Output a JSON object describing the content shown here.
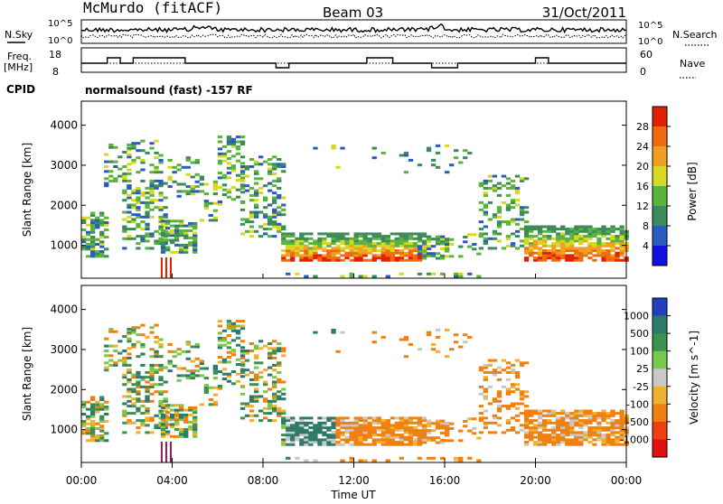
{
  "header": {
    "station": "McMurdo (fitACF)",
    "beam": "Beam 03",
    "date": "31/Oct/2011"
  },
  "noise_panel": {
    "left_label": "N.Sky",
    "right_label": "N.Search",
    "tick_top": "10^5",
    "tick_bottom": "10^0",
    "right_tick_top": "10^5",
    "right_tick_bottom": "10^0"
  },
  "freq_panel": {
    "left_label_1": "Freq.",
    "left_label_2": "[MHz]",
    "ticks": [
      "18",
      "8"
    ],
    "right_label": "Nave",
    "right_ticks": [
      "60",
      "0"
    ]
  },
  "cpid_panel": {
    "label": "CPID",
    "mode": "normalsound (fast) -157 RF"
  },
  "chart_data": [
    {
      "type": "heatmap",
      "name": "power",
      "ylabel": "Slant Range [km]",
      "yticks": [
        "1000",
        "2000",
        "3000",
        "4000"
      ],
      "colorbar_label": "Power [dB]",
      "colorbar_ticks": [
        "4",
        "8",
        "12",
        "16",
        "20",
        "24",
        "28"
      ],
      "colorbar_colors": [
        "#1010e0",
        "#2a5cc0",
        "#3c8c5a",
        "#5ab43c",
        "#d8d820",
        "#f0a020",
        "#f06a10",
        "#e02000"
      ]
    },
    {
      "type": "heatmap",
      "name": "velocity",
      "ylabel": "Slant Range [km]",
      "yticks": [
        "1000",
        "2000",
        "3000",
        "4000"
      ],
      "colorbar_label": "Velocity [m s^-1]",
      "colorbar_ticks": [
        "1000",
        "500",
        "100",
        "25",
        "-25",
        "-100",
        "-500",
        "-1000"
      ],
      "colorbar_colors": [
        "#2040c0",
        "#2e7a6a",
        "#3c9050",
        "#7ac848",
        "#c8c8c8",
        "#f0b030",
        "#f08010",
        "#f04010",
        "#e01010"
      ]
    }
  ],
  "time_axis": {
    "ticks": [
      "00:00",
      "04:00",
      "08:00",
      "12:00",
      "16:00",
      "20:00",
      "00:00"
    ],
    "xlabel": "Time UT"
  }
}
